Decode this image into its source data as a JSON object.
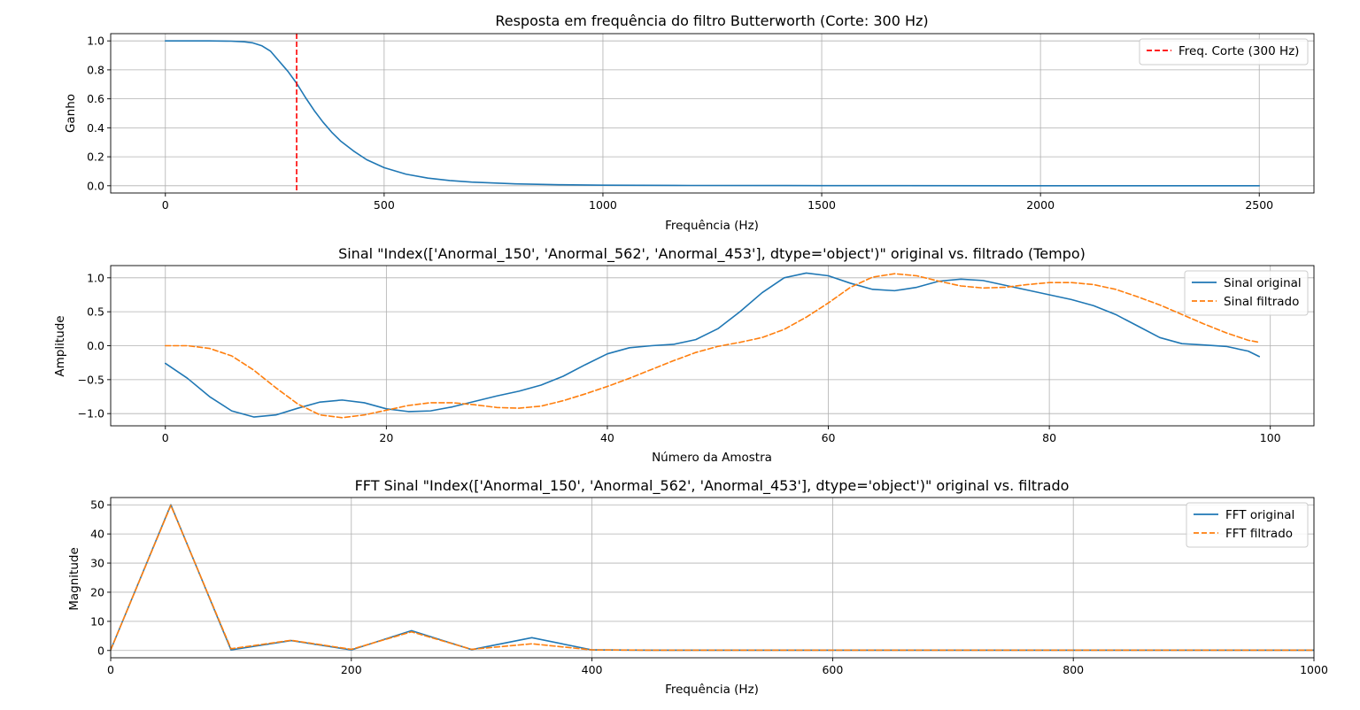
{
  "chart_data": [
    {
      "type": "line",
      "title": "Resposta em frequência do filtro Butterworth (Corte: 300 Hz)",
      "xlabel": "Frequência (Hz)",
      "ylabel": "Ganho",
      "xlim": [
        -125,
        2625
      ],
      "ylim": [
        -0.05,
        1.05
      ],
      "xticks": [
        0,
        500,
        1000,
        1500,
        2000,
        2500
      ],
      "yticks": [
        0.0,
        0.2,
        0.4,
        0.6,
        0.8,
        1.0
      ],
      "xtick_labels": [
        "0",
        "500",
        "1000",
        "1500",
        "2000",
        "2500"
      ],
      "ytick_labels": [
        "0.0",
        "0.2",
        "0.4",
        "0.6",
        "0.8",
        "1.0"
      ],
      "grid": true,
      "legend": "top-right",
      "series": [
        {
          "color": "#1f77b4",
          "dash": "solid",
          "x": [
            0,
            50,
            100,
            150,
            180,
            200,
            220,
            240,
            260,
            280,
            300,
            320,
            340,
            360,
            380,
            400,
            430,
            460,
            500,
            550,
            600,
            650,
            700,
            800,
            900,
            1000,
            1200,
            1500,
            2000,
            2500
          ],
          "y": [
            1.0,
            1.0,
            1.0,
            0.998,
            0.994,
            0.986,
            0.967,
            0.93,
            0.86,
            0.79,
            0.707,
            0.61,
            0.52,
            0.44,
            0.37,
            0.31,
            0.24,
            0.18,
            0.125,
            0.08,
            0.053,
            0.036,
            0.025,
            0.013,
            0.007,
            0.004,
            0.002,
            0.001,
            0.0,
            0.0
          ]
        },
        {
          "name": "Freq. Corte (300 Hz)",
          "color": "#ff0000",
          "dash": "dashed",
          "vline": 300
        }
      ]
    },
    {
      "type": "line",
      "title": "Sinal \"Index(['Anormal_150', 'Anormal_562', 'Anormal_453'], dtype='object')\" original vs. filtrado (Tempo)",
      "xlabel": "Número da Amostra",
      "ylabel": "Amplitude",
      "xlim": [
        -4.95,
        103.95
      ],
      "ylim": [
        -1.18,
        1.18
      ],
      "xticks": [
        0,
        20,
        40,
        60,
        80,
        100
      ],
      "yticks": [
        -1.0,
        -0.5,
        0.0,
        0.5,
        1.0
      ],
      "xtick_labels": [
        "0",
        "20",
        "40",
        "60",
        "80",
        "100"
      ],
      "ytick_labels": [
        "−1.0",
        "−0.5",
        "0.0",
        "0.5",
        "1.0"
      ],
      "grid": true,
      "legend": "top-right",
      "series": [
        {
          "name": "Sinal original",
          "color": "#1f77b4",
          "dash": "solid",
          "x": [
            0,
            2,
            4,
            6,
            8,
            10,
            12,
            14,
            16,
            18,
            20,
            22,
            24,
            26,
            28,
            30,
            32,
            34,
            36,
            38,
            40,
            42,
            44,
            46,
            48,
            50,
            52,
            54,
            56,
            58,
            60,
            62,
            64,
            66,
            68,
            70,
            72,
            74,
            76,
            78,
            80,
            82,
            84,
            86,
            88,
            90,
            92,
            94,
            96,
            98,
            99
          ],
          "y": [
            -0.26,
            -0.48,
            -0.75,
            -0.96,
            -1.05,
            -1.02,
            -0.92,
            -0.83,
            -0.8,
            -0.84,
            -0.93,
            -0.97,
            -0.96,
            -0.9,
            -0.82,
            -0.74,
            -0.67,
            -0.58,
            -0.45,
            -0.28,
            -0.12,
            -0.03,
            0.0,
            0.02,
            0.09,
            0.25,
            0.5,
            0.78,
            1.0,
            1.07,
            1.03,
            0.92,
            0.83,
            0.81,
            0.86,
            0.95,
            0.98,
            0.96,
            0.89,
            0.82,
            0.75,
            0.68,
            0.59,
            0.46,
            0.29,
            0.12,
            0.03,
            0.01,
            -0.01,
            -0.08,
            -0.16
          ]
        },
        {
          "name": "Sinal filtrado",
          "color": "#ff7f0e",
          "dash": "dashed",
          "x": [
            0,
            2,
            4,
            6,
            8,
            10,
            12,
            14,
            16,
            18,
            20,
            22,
            24,
            26,
            28,
            30,
            32,
            34,
            36,
            38,
            40,
            42,
            44,
            46,
            48,
            50,
            52,
            54,
            56,
            58,
            60,
            62,
            64,
            66,
            68,
            70,
            72,
            74,
            76,
            78,
            80,
            82,
            84,
            86,
            88,
            90,
            92,
            94,
            96,
            98,
            99
          ],
          "y": [
            0.0,
            0.0,
            -0.04,
            -0.15,
            -0.36,
            -0.62,
            -0.86,
            -1.02,
            -1.06,
            -1.02,
            -0.95,
            -0.88,
            -0.84,
            -0.84,
            -0.87,
            -0.91,
            -0.92,
            -0.89,
            -0.81,
            -0.71,
            -0.6,
            -0.48,
            -0.35,
            -0.22,
            -0.1,
            -0.01,
            0.05,
            0.12,
            0.24,
            0.42,
            0.63,
            0.86,
            1.01,
            1.06,
            1.03,
            0.95,
            0.88,
            0.85,
            0.86,
            0.9,
            0.93,
            0.93,
            0.9,
            0.83,
            0.72,
            0.6,
            0.46,
            0.32,
            0.19,
            0.08,
            0.05
          ]
        }
      ]
    },
    {
      "type": "line",
      "title": "FFT Sinal \"Index(['Anormal_150', 'Anormal_562', 'Anormal_453'], dtype='object')\" original vs. filtrado",
      "xlabel": "Frequência (Hz)",
      "ylabel": "Magnitude",
      "xlim": [
        0,
        1000
      ],
      "ylim": [
        -2.5,
        52.5
      ],
      "xticks": [
        0,
        200,
        400,
        600,
        800,
        1000
      ],
      "yticks": [
        0,
        10,
        20,
        30,
        40,
        50
      ],
      "xtick_labels": [
        "0",
        "200",
        "400",
        "600",
        "800",
        "1000"
      ],
      "ytick_labels": [
        "0",
        "10",
        "20",
        "30",
        "40",
        "50"
      ],
      "grid": true,
      "legend": "top-right",
      "series": [
        {
          "name": "FFT original",
          "color": "#1f77b4",
          "dash": "solid",
          "x": [
            0,
            50,
            100,
            150,
            200,
            250,
            300,
            350,
            400,
            450,
            500,
            550,
            600,
            650,
            700,
            750,
            800,
            850,
            900,
            950,
            1000
          ],
          "y": [
            0.2,
            50.0,
            0.2,
            3.4,
            0.2,
            6.8,
            0.3,
            4.4,
            0.2,
            0.1,
            0.1,
            0.1,
            0.1,
            0.1,
            0.1,
            0.1,
            0.1,
            0.1,
            0.1,
            0.1,
            0.1
          ]
        },
        {
          "name": "FFT filtrado",
          "color": "#ff7f0e",
          "dash": "dashed",
          "x": [
            0,
            50,
            100,
            150,
            200,
            250,
            300,
            350,
            400,
            450,
            500,
            550,
            600,
            650,
            700,
            750,
            800,
            850,
            900,
            950,
            1000
          ],
          "y": [
            0.2,
            49.8,
            0.6,
            3.5,
            0.4,
            6.4,
            0.4,
            2.3,
            0.2,
            0.1,
            0.1,
            0.1,
            0.1,
            0.1,
            0.1,
            0.1,
            0.1,
            0.1,
            0.1,
            0.1,
            0.1
          ]
        }
      ]
    }
  ]
}
